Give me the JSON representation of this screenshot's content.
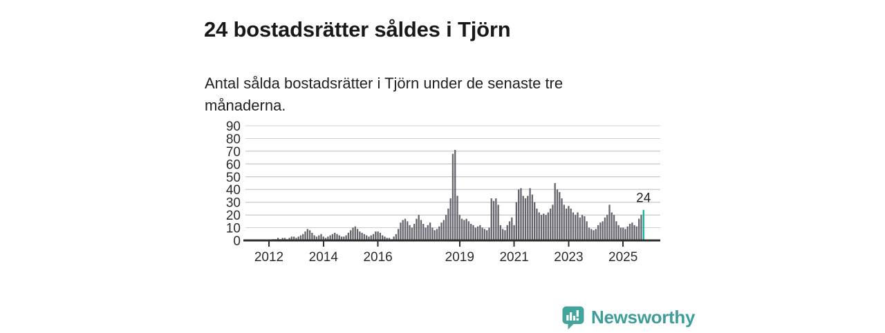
{
  "header": {
    "title": "24 bostadsrätter såldes i Tjörn",
    "subtitle_lines": [
      "Antal sålda bostadsrätter i Tjörn under de senaste tre",
      "månaderna."
    ]
  },
  "chart_data": {
    "type": "bar",
    "title": "24 bostadsrätter såldes i Tjörn",
    "xlabel": "",
    "ylabel": "",
    "ylim": [
      0,
      90
    ],
    "yticks": [
      0,
      10,
      20,
      30,
      40,
      50,
      60,
      70,
      80,
      90
    ],
    "xtick_years": [
      2012,
      2014,
      2016,
      2019,
      2021,
      2023,
      2025
    ],
    "start_year": 2012,
    "bars_per_year": 12,
    "grid": true,
    "legend": "none",
    "values": [
      0,
      0,
      1,
      1,
      2,
      1,
      2,
      2,
      1,
      2,
      3,
      3,
      2,
      3,
      4,
      5,
      7,
      9,
      8,
      6,
      4,
      3,
      4,
      5,
      3,
      2,
      3,
      4,
      5,
      6,
      5,
      4,
      3,
      3,
      4,
      6,
      8,
      10,
      11,
      9,
      7,
      6,
      5,
      4,
      3,
      4,
      5,
      7,
      7,
      6,
      4,
      3,
      2,
      2,
      1,
      3,
      5,
      9,
      14,
      16,
      17,
      15,
      12,
      10,
      13,
      17,
      20,
      16,
      13,
      10,
      12,
      14,
      10,
      8,
      9,
      11,
      14,
      16,
      20,
      25,
      33,
      68,
      71,
      35,
      20,
      17,
      16,
      17,
      15,
      13,
      12,
      10,
      11,
      12,
      10,
      9,
      8,
      10,
      33,
      31,
      33,
      28,
      12,
      9,
      8,
      12,
      15,
      18,
      12,
      30,
      40,
      41,
      35,
      33,
      35,
      41,
      36,
      30,
      25,
      22,
      20,
      21,
      20,
      22,
      25,
      28,
      45,
      40,
      38,
      33,
      28,
      25,
      27,
      25,
      22,
      20,
      22,
      18,
      20,
      19,
      15,
      10,
      9,
      8,
      9,
      12,
      14,
      15,
      18,
      20,
      28,
      22,
      20,
      15,
      12,
      10,
      10,
      9,
      11,
      13,
      14,
      12,
      11,
      17,
      20,
      24
    ],
    "highlight": {
      "index": 165,
      "value": 24,
      "label": "24"
    },
    "colors": {
      "bar": "#64646c",
      "highlight": "#10b2a4",
      "grid": "#cdd0d3",
      "axis": "#2d2d2d",
      "tick_label": "#2b2b2b",
      "annotation": "#1f1f1f"
    }
  },
  "footer": {
    "brand": "Newsworthy",
    "brand_color": "#3e9d98"
  }
}
